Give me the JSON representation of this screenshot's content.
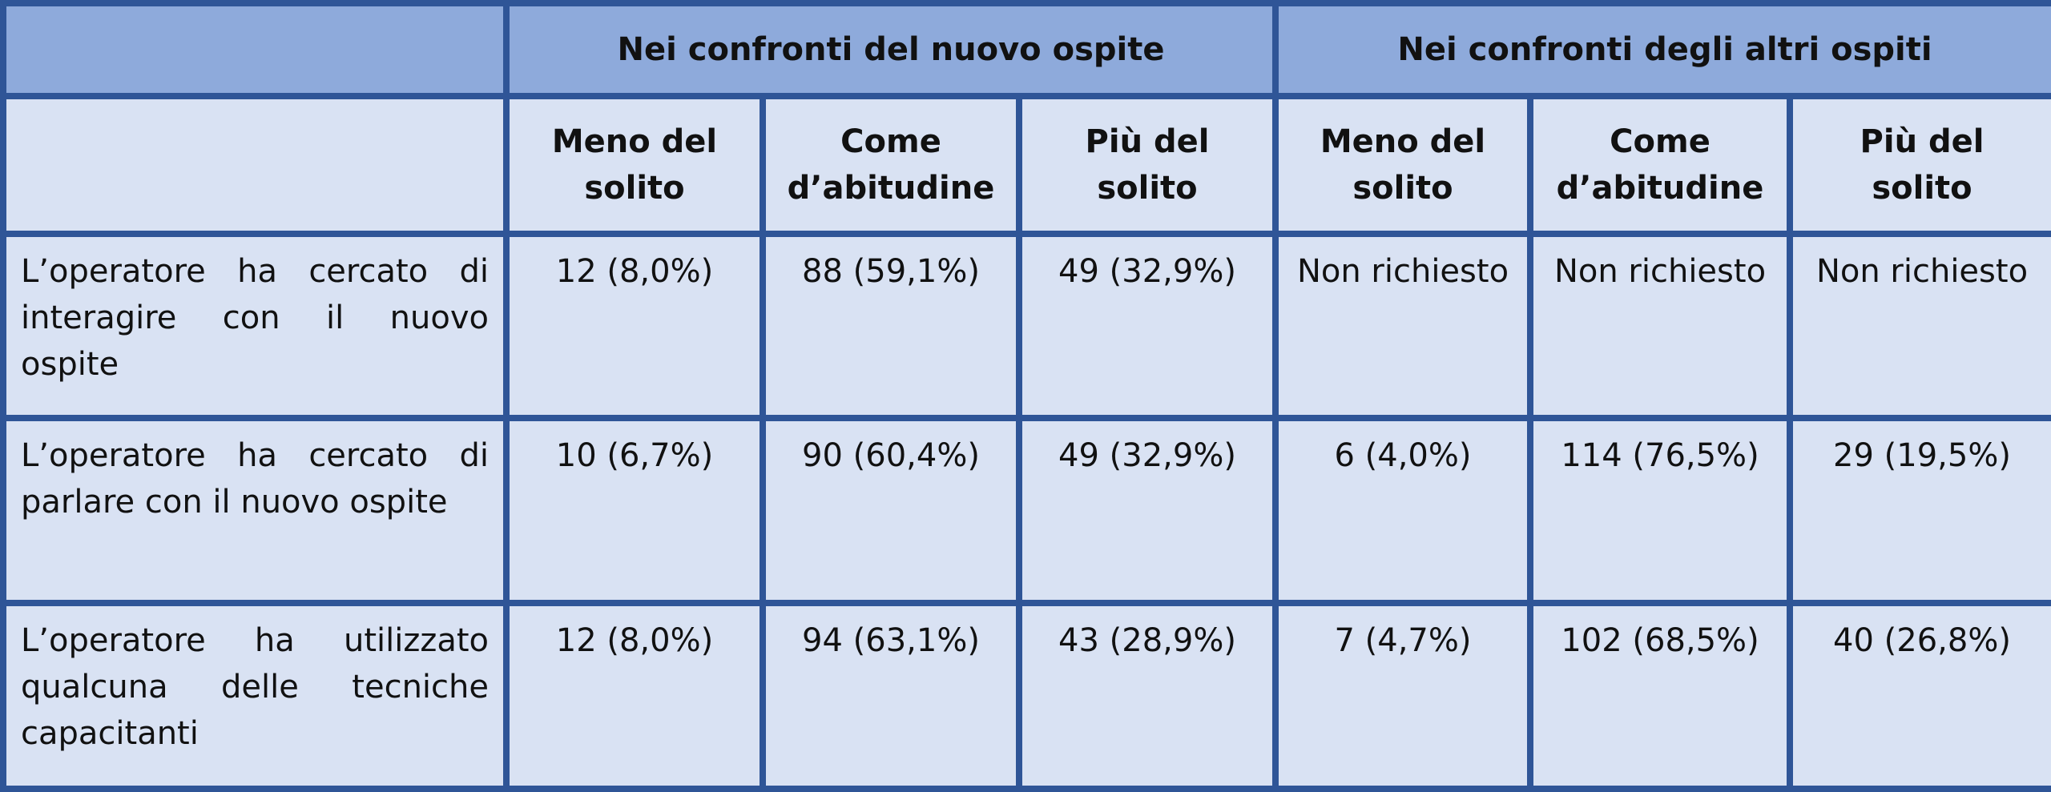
{
  "table": {
    "groups": [
      "Nei confronti del nuovo ospite",
      "Nei confronti degli altri ospiti"
    ],
    "subcolumns": [
      "Meno del solito",
      "Come d’abitudine",
      "Più del solito",
      "Meno del solito",
      "Come d’abitudine",
      "Più del solito"
    ],
    "rows": [
      {
        "label": "L’operatore ha cercato di interagire con il nuovo ospite",
        "cells": [
          "12 (8,0%)",
          "88 (59,1%)",
          "49 (32,9%)",
          "Non richiesto",
          "Non richiesto",
          "Non richiesto"
        ]
      },
      {
        "label": "L’operatore ha cercato di parlare con il nuovo ospite",
        "cells": [
          "10 (6,7%)",
          "90 (60,4%)",
          "49 (32,9%)",
          "6 (4,0%)",
          "114 (76,5%)",
          "29 (19,5%)"
        ]
      },
      {
        "label": "L’operatore ha utilizzato qualcuna delle tecniche capacitanti",
        "cells": [
          "12 (8,0%)",
          "94 (63,1%)",
          "43 (28,9%)",
          "7 (4,7%)",
          "102 (68,5%)",
          "40 (26,8%)"
        ]
      }
    ]
  }
}
